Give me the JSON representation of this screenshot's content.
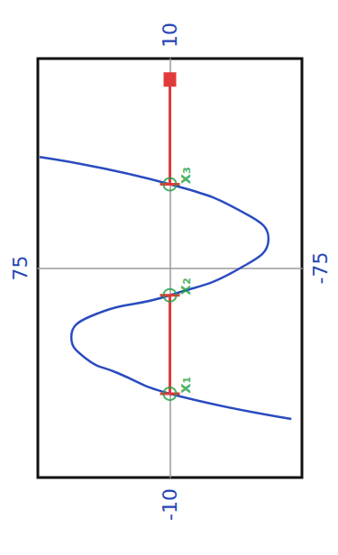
{
  "chart_data": {
    "type": "line",
    "x": [
      -7.2,
      -6.0,
      -5.0,
      -4.3,
      -3.3,
      -2.3,
      -1.3,
      0.0,
      1.4,
      2.5,
      4.0,
      5.3
    ],
    "values": [
      -69,
      0,
      30,
      48,
      56,
      45,
      0,
      -40,
      -56,
      -45,
      0,
      74
    ],
    "color": "#2a4bbf",
    "xlim": [
      -10,
      10
    ],
    "ylim": [
      -75,
      75
    ],
    "xticks": [
      -10,
      10
    ],
    "yticks": [
      -75,
      75
    ],
    "grid": false,
    "annotations": [
      {
        "text": "x₁",
        "x": -6.0,
        "y": 0,
        "color": "#1e9e3e"
      },
      {
        "text": "x₂",
        "x": -1.3,
        "y": 0,
        "color": "#1e9e3e"
      },
      {
        "text": "x₃",
        "x": 4.0,
        "y": 0,
        "color": "#1e9e3e"
      }
    ],
    "solution": {
      "color": "#e23a3a",
      "intervals": [
        [
          -6.0,
          -1.3
        ],
        [
          4.0,
          9.0
        ]
      ],
      "arrow": true
    }
  }
}
